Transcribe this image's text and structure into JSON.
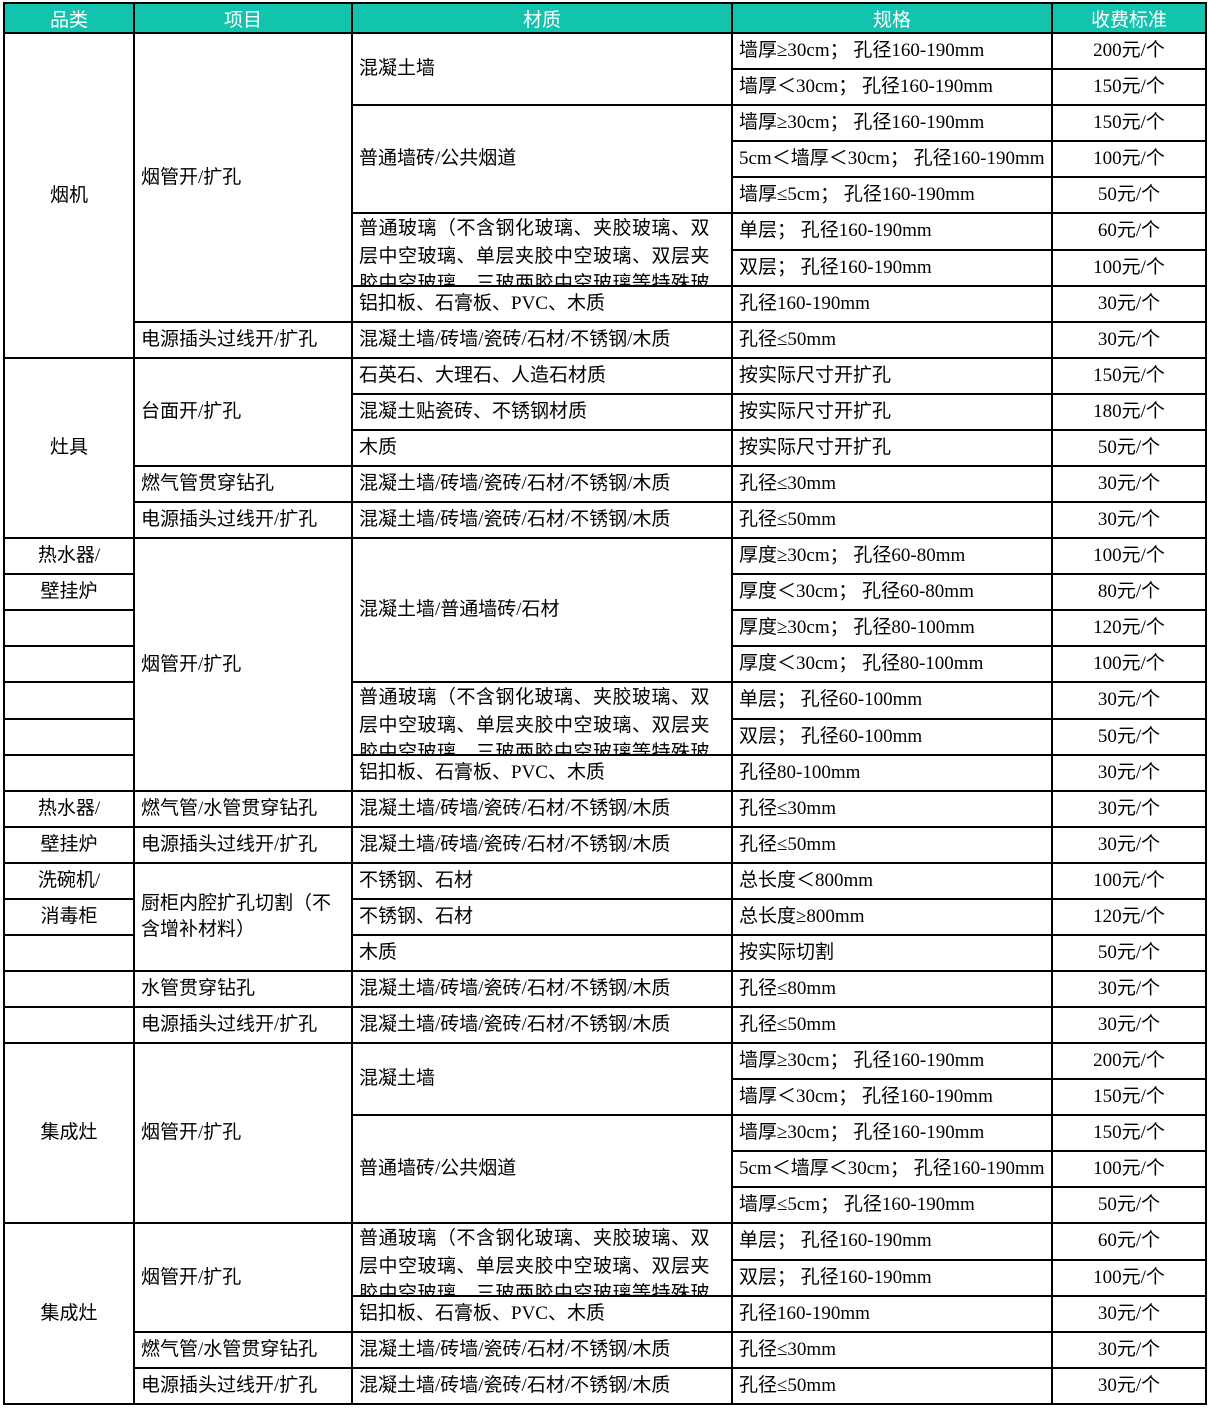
{
  "colors": {
    "header_bg": "#12C3AE",
    "header_text": "#FFFFFF",
    "border": "#000000",
    "background": "#FFFFFF"
  },
  "header": {
    "columns": [
      "品类",
      "项目",
      "材质",
      "规格",
      "收费标准"
    ]
  },
  "rows": [
    {
      "cells": [
        {
          "c": 0,
          "t": "烟机",
          "rs": 9
        },
        {
          "c": 1,
          "t": "烟管开/扩孔",
          "rs": 8
        },
        {
          "c": 2,
          "t": "混凝土墙",
          "rs": 2
        },
        {
          "c": 3,
          "t": "墙厚≥30cm； 孔径160-190mm"
        },
        {
          "c": 4,
          "t": "200元/个"
        }
      ]
    },
    {
      "cells": [
        {
          "c": 3,
          "t": "墙厚＜30cm； 孔径160-190mm"
        },
        {
          "c": 4,
          "t": "150元/个"
        }
      ]
    },
    {
      "cells": [
        {
          "c": 2,
          "t": "普通墙砖/公共烟道",
          "rs": 3
        },
        {
          "c": 3,
          "t": "墙厚≥30cm； 孔径160-190mm"
        },
        {
          "c": 4,
          "t": "150元/个"
        }
      ]
    },
    {
      "cells": [
        {
          "c": 3,
          "t": "5cm＜墙厚＜30cm； 孔径160-190mm"
        },
        {
          "c": 4,
          "t": "100元/个"
        }
      ]
    },
    {
      "cells": [
        {
          "c": 3,
          "t": "墙厚≤5cm； 孔径160-190mm"
        },
        {
          "c": 4,
          "t": "50元/个"
        }
      ]
    },
    {
      "cells": [
        {
          "c": 2,
          "t": "普通玻璃（不含钢化玻璃、夹胶玻璃、双层中空玻璃、单层夹胶中空玻璃、双层夹胶中空玻璃、三玻两胶中空玻璃等特殊玻璃）",
          "rs": 2,
          "clip": true
        },
        {
          "c": 3,
          "t": "单层； 孔径160-190mm"
        },
        {
          "c": 4,
          "t": "60元/个"
        }
      ]
    },
    {
      "cells": [
        {
          "c": 3,
          "t": "双层； 孔径160-190mm"
        },
        {
          "c": 4,
          "t": "100元/个"
        }
      ]
    },
    {
      "cells": [
        {
          "c": 2,
          "t": "铝扣板、石膏板、PVC、木质"
        },
        {
          "c": 3,
          "t": "孔径160-190mm"
        },
        {
          "c": 4,
          "t": "30元/个"
        }
      ]
    },
    {
      "cells": [
        {
          "c": 1,
          "t": "电源插头过线开/扩孔"
        },
        {
          "c": 2,
          "t": "混凝土墙/砖墙/瓷砖/石材/不锈钢/木质"
        },
        {
          "c": 3,
          "t": "孔径≤50mm"
        },
        {
          "c": 4,
          "t": "30元/个"
        }
      ]
    },
    {
      "cells": [
        {
          "c": 0,
          "t": "灶具",
          "rs": 5
        },
        {
          "c": 1,
          "t": "台面开/扩孔",
          "rs": 3
        },
        {
          "c": 2,
          "t": "石英石、大理石、人造石材质"
        },
        {
          "c": 3,
          "t": "按实际尺寸开扩孔"
        },
        {
          "c": 4,
          "t": "150元/个"
        }
      ]
    },
    {
      "cells": [
        {
          "c": 2,
          "t": "混凝土贴瓷砖、不锈钢材质"
        },
        {
          "c": 3,
          "t": "按实际尺寸开扩孔"
        },
        {
          "c": 4,
          "t": "180元/个"
        }
      ]
    },
    {
      "cells": [
        {
          "c": 2,
          "t": "木质"
        },
        {
          "c": 3,
          "t": "按实际尺寸开扩孔"
        },
        {
          "c": 4,
          "t": "50元/个"
        }
      ]
    },
    {
      "cells": [
        {
          "c": 1,
          "t": "燃气管贯穿钻孔"
        },
        {
          "c": 2,
          "t": "混凝土墙/砖墙/瓷砖/石材/不锈钢/木质"
        },
        {
          "c": 3,
          "t": "孔径≤30mm"
        },
        {
          "c": 4,
          "t": "30元/个"
        }
      ]
    },
    {
      "cells": [
        {
          "c": 1,
          "t": "电源插头过线开/扩孔"
        },
        {
          "c": 2,
          "t": "混凝土墙/砖墙/瓷砖/石材/不锈钢/木质"
        },
        {
          "c": 3,
          "t": "孔径≤50mm"
        },
        {
          "c": 4,
          "t": "30元/个"
        }
      ]
    },
    {
      "cells": [
        {
          "c": 0,
          "t": "热水器/"
        },
        {
          "c": 1,
          "t": "烟管开/扩孔",
          "rs": 7
        },
        {
          "c": 2,
          "t": "混凝土墙/普通墙砖/石材",
          "rs": 4
        },
        {
          "c": 3,
          "t": "厚度≥30cm； 孔径60-80mm"
        },
        {
          "c": 4,
          "t": "100元/个"
        }
      ]
    },
    {
      "cells": [
        {
          "c": 0,
          "t": "壁挂炉"
        },
        {
          "c": 3,
          "t": "厚度＜30cm； 孔径60-80mm"
        },
        {
          "c": 4,
          "t": "80元/个"
        }
      ]
    },
    {
      "cells": [
        {
          "c": 0,
          "t": ""
        },
        {
          "c": 3,
          "t": "厚度≥30cm； 孔径80-100mm"
        },
        {
          "c": 4,
          "t": "120元/个"
        }
      ]
    },
    {
      "cells": [
        {
          "c": 0,
          "t": ""
        },
        {
          "c": 3,
          "t": "厚度＜30cm； 孔径80-100mm"
        },
        {
          "c": 4,
          "t": "100元/个"
        }
      ]
    },
    {
      "cells": [
        {
          "c": 0,
          "t": ""
        },
        {
          "c": 2,
          "t": "普通玻璃（不含钢化玻璃、夹胶玻璃、双层中空玻璃、单层夹胶中空玻璃、双层夹胶中空玻璃、三玻两胶中空玻璃等特殊玻璃）",
          "rs": 2,
          "clip": true
        },
        {
          "c": 3,
          "t": "单层； 孔径60-100mm"
        },
        {
          "c": 4,
          "t": "30元/个"
        }
      ]
    },
    {
      "cells": [
        {
          "c": 0,
          "t": ""
        },
        {
          "c": 3,
          "t": "双层； 孔径60-100mm"
        },
        {
          "c": 4,
          "t": "50元/个"
        }
      ]
    },
    {
      "cells": [
        {
          "c": 0,
          "t": ""
        },
        {
          "c": 2,
          "t": "铝扣板、石膏板、PVC、木质"
        },
        {
          "c": 3,
          "t": "孔径80-100mm"
        },
        {
          "c": 4,
          "t": "30元/个"
        }
      ]
    },
    {
      "cells": [
        {
          "c": 0,
          "t": "热水器/"
        },
        {
          "c": 1,
          "t": "燃气管/水管贯穿钻孔"
        },
        {
          "c": 2,
          "t": "混凝土墙/砖墙/瓷砖/石材/不锈钢/木质"
        },
        {
          "c": 3,
          "t": "孔径≤30mm"
        },
        {
          "c": 4,
          "t": "30元/个"
        }
      ]
    },
    {
      "cells": [
        {
          "c": 0,
          "t": "壁挂炉"
        },
        {
          "c": 1,
          "t": "电源插头过线开/扩孔"
        },
        {
          "c": 2,
          "t": "混凝土墙/砖墙/瓷砖/石材/不锈钢/木质"
        },
        {
          "c": 3,
          "t": "孔径≤50mm"
        },
        {
          "c": 4,
          "t": "30元/个"
        }
      ]
    },
    {
      "cells": [
        {
          "c": 0,
          "t": "洗碗机/"
        },
        {
          "c": 1,
          "t": "厨柜内腔扩孔切割（不含增补材料）",
          "rs": 3
        },
        {
          "c": 2,
          "t": "不锈钢、石材"
        },
        {
          "c": 3,
          "t": "总长度＜800mm"
        },
        {
          "c": 4,
          "t": "100元/个"
        }
      ]
    },
    {
      "cells": [
        {
          "c": 0,
          "t": "消毒柜"
        },
        {
          "c": 2,
          "t": "不锈钢、石材"
        },
        {
          "c": 3,
          "t": "总长度≥800mm"
        },
        {
          "c": 4,
          "t": "120元/个"
        }
      ]
    },
    {
      "cells": [
        {
          "c": 0,
          "t": ""
        },
        {
          "c": 2,
          "t": "木质"
        },
        {
          "c": 3,
          "t": "按实际切割"
        },
        {
          "c": 4,
          "t": "50元/个"
        }
      ]
    },
    {
      "cells": [
        {
          "c": 0,
          "t": ""
        },
        {
          "c": 1,
          "t": "水管贯穿钻孔"
        },
        {
          "c": 2,
          "t": "混凝土墙/砖墙/瓷砖/石材/不锈钢/木质"
        },
        {
          "c": 3,
          "t": "孔径≤80mm"
        },
        {
          "c": 4,
          "t": "30元/个"
        }
      ]
    },
    {
      "cells": [
        {
          "c": 0,
          "t": ""
        },
        {
          "c": 1,
          "t": "电源插头过线开/扩孔"
        },
        {
          "c": 2,
          "t": "混凝土墙/砖墙/瓷砖/石材/不锈钢/木质"
        },
        {
          "c": 3,
          "t": "孔径≤50mm"
        },
        {
          "c": 4,
          "t": "30元/个"
        }
      ]
    },
    {
      "cells": [
        {
          "c": 0,
          "t": "集成灶",
          "rs": 5
        },
        {
          "c": 1,
          "t": "烟管开/扩孔",
          "rs": 5
        },
        {
          "c": 2,
          "t": "混凝土墙",
          "rs": 2
        },
        {
          "c": 3,
          "t": "墙厚≥30cm； 孔径160-190mm"
        },
        {
          "c": 4,
          "t": "200元/个"
        }
      ]
    },
    {
      "cells": [
        {
          "c": 3,
          "t": "墙厚＜30cm； 孔径160-190mm"
        },
        {
          "c": 4,
          "t": "150元/个"
        }
      ]
    },
    {
      "cells": [
        {
          "c": 2,
          "t": "普通墙砖/公共烟道",
          "rs": 3
        },
        {
          "c": 3,
          "t": "墙厚≥30cm； 孔径160-190mm"
        },
        {
          "c": 4,
          "t": "150元/个"
        }
      ]
    },
    {
      "cells": [
        {
          "c": 3,
          "t": "5cm＜墙厚＜30cm； 孔径160-190mm"
        },
        {
          "c": 4,
          "t": "100元/个"
        }
      ]
    },
    {
      "cells": [
        {
          "c": 3,
          "t": "墙厚≤5cm； 孔径160-190mm"
        },
        {
          "c": 4,
          "t": "50元/个"
        }
      ]
    },
    {
      "cells": [
        {
          "c": 0,
          "t": "集成灶",
          "rs": 5
        },
        {
          "c": 1,
          "t": "烟管开/扩孔",
          "rs": 3
        },
        {
          "c": 2,
          "t": "普通玻璃（不含钢化玻璃、夹胶玻璃、双层中空玻璃、单层夹胶中空玻璃、双层夹胶中空玻璃、三玻两胶中空玻璃等特殊玻璃）",
          "rs": 2,
          "clip": true
        },
        {
          "c": 3,
          "t": "单层； 孔径160-190mm"
        },
        {
          "c": 4,
          "t": "60元/个"
        }
      ]
    },
    {
      "cells": [
        {
          "c": 3,
          "t": "双层； 孔径160-190mm"
        },
        {
          "c": 4,
          "t": "100元/个"
        }
      ]
    },
    {
      "cells": [
        {
          "c": 2,
          "t": "铝扣板、石膏板、PVC、木质"
        },
        {
          "c": 3,
          "t": "孔径160-190mm"
        },
        {
          "c": 4,
          "t": "30元/个"
        }
      ]
    },
    {
      "cells": [
        {
          "c": 1,
          "t": "燃气管/水管贯穿钻孔"
        },
        {
          "c": 2,
          "t": "混凝土墙/砖墙/瓷砖/石材/不锈钢/木质"
        },
        {
          "c": 3,
          "t": "孔径≤30mm"
        },
        {
          "c": 4,
          "t": "30元/个"
        }
      ]
    },
    {
      "cells": [
        {
          "c": 1,
          "t": "电源插头过线开/扩孔"
        },
        {
          "c": 2,
          "t": "混凝土墙/砖墙/瓷砖/石材/不锈钢/木质"
        },
        {
          "c": 3,
          "t": "孔径≤50mm"
        },
        {
          "c": 4,
          "t": "30元/个"
        }
      ]
    }
  ]
}
